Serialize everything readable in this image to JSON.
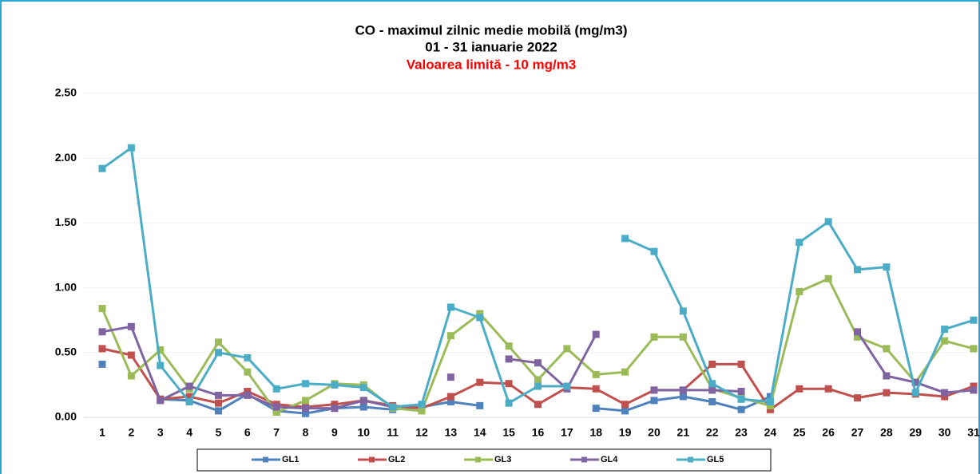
{
  "chart_data": {
    "type": "line",
    "title": "CO - maximul zilnic medie mobilă (mg/m3)",
    "subtitle": "01 - 31 ianuarie 2022",
    "annotation": "Valoarea limită - 10 mg/m3",
    "categories": [
      "1",
      "2",
      "3",
      "4",
      "5",
      "6",
      "7",
      "8",
      "9",
      "10",
      "11",
      "12",
      "13",
      "14",
      "15",
      "16",
      "17",
      "18",
      "19",
      "20",
      "21",
      "22",
      "23",
      "24",
      "25",
      "26",
      "27",
      "28",
      "29",
      "30",
      "31"
    ],
    "ylim": [
      0,
      2.5
    ],
    "yticks": [
      {
        "value": 0,
        "label": "0.00"
      },
      {
        "value": 0.5,
        "label": "0.50"
      },
      {
        "value": 1,
        "label": "1.00"
      },
      {
        "value": 1.5,
        "label": "1.50"
      },
      {
        "value": 2,
        "label": "2.00"
      },
      {
        "value": 2.5,
        "label": "2.50"
      }
    ],
    "grid": true,
    "legend": "bottom",
    "series": [
      {
        "name": "GL1",
        "color": "#4f81bd",
        "values": [
          0.41,
          null,
          0.14,
          0.13,
          0.05,
          0.18,
          0.05,
          0.03,
          0.07,
          0.08,
          0.06,
          0.08,
          0.12,
          0.09,
          null,
          null,
          null,
          0.07,
          0.05,
          0.13,
          0.16,
          0.12,
          0.06,
          0.16,
          null,
          null,
          null,
          null,
          null,
          null,
          null
        ]
      },
      {
        "name": "GL2",
        "color": "#c0504d",
        "values": [
          0.53,
          0.48,
          0.14,
          0.16,
          0.11,
          0.2,
          0.1,
          0.08,
          0.1,
          0.13,
          0.09,
          0.07,
          0.16,
          0.27,
          0.26,
          0.1,
          0.23,
          0.22,
          0.1,
          0.21,
          0.21,
          0.41,
          0.41,
          0.06,
          0.22,
          0.22,
          0.15,
          0.19,
          0.18,
          0.16,
          0.24
        ]
      },
      {
        "name": "GL3",
        "color": "#9bbb59",
        "values": [
          0.84,
          0.32,
          0.52,
          0.22,
          0.58,
          0.35,
          0.04,
          0.13,
          0.26,
          0.25,
          0.07,
          0.05,
          0.63,
          0.8,
          0.55,
          0.29,
          0.53,
          0.33,
          0.35,
          0.62,
          0.62,
          0.22,
          0.15,
          0.09,
          0.97,
          1.07,
          0.62,
          0.53,
          0.27,
          0.59,
          0.53
        ]
      },
      {
        "name": "GL4",
        "color": "#8064a2",
        "values": [
          0.66,
          0.7,
          0.13,
          0.24,
          0.17,
          0.17,
          0.08,
          0.07,
          0.07,
          0.13,
          0.08,
          null,
          0.31,
          null,
          0.45,
          0.42,
          0.22,
          0.64,
          null,
          0.21,
          0.21,
          0.21,
          0.2,
          null,
          null,
          null,
          0.66,
          0.32,
          0.27,
          0.19,
          0.21
        ]
      },
      {
        "name": "GL5",
        "color": "#4bacc6",
        "values": [
          1.92,
          2.08,
          0.4,
          0.12,
          0.5,
          0.46,
          0.22,
          0.26,
          0.25,
          0.23,
          0.08,
          0.1,
          0.85,
          0.77,
          0.11,
          0.24,
          0.24,
          null,
          1.38,
          1.28,
          0.82,
          0.26,
          0.14,
          0.12,
          1.35,
          1.51,
          1.14,
          1.16,
          0.19,
          0.68,
          0.75
        ]
      }
    ]
  }
}
